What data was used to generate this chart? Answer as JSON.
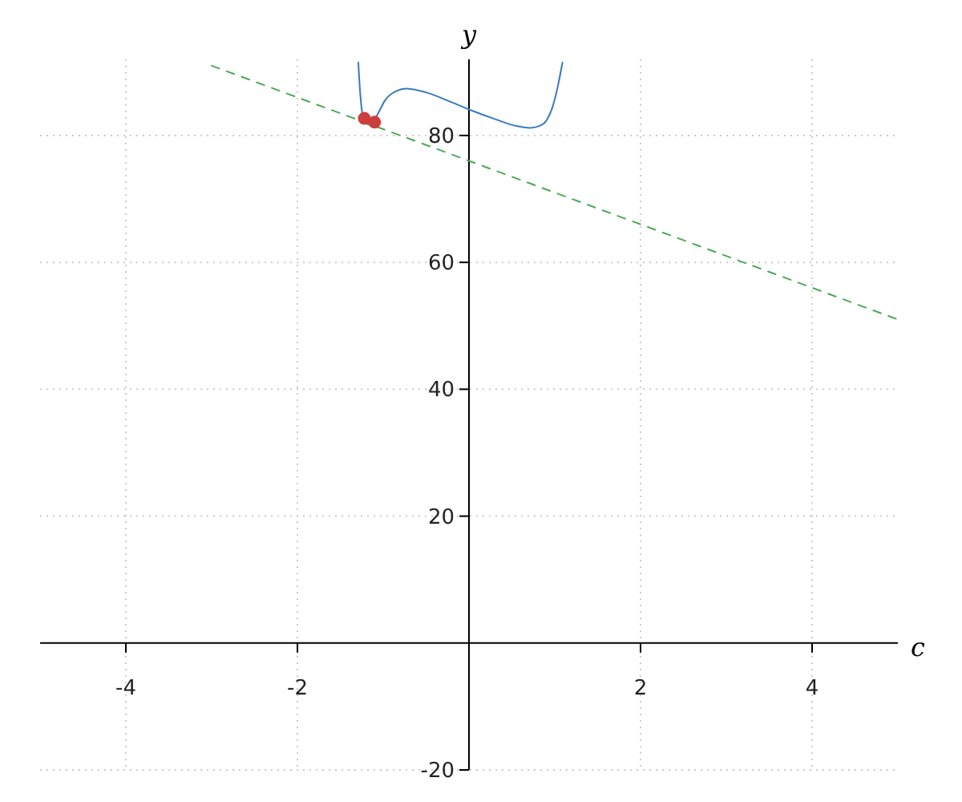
{
  "chart_data": {
    "type": "line",
    "xlabel": "c",
    "ylabel": "y",
    "xlim": [
      -5,
      5
    ],
    "ylim": [
      -20,
      92
    ],
    "xticks": [
      -4,
      -2,
      2,
      4
    ],
    "yticks": [
      -20,
      20,
      40,
      60,
      80
    ],
    "grid": true,
    "series": [
      {
        "color": "#3a78c3",
        "x": [
          -1.29,
          -1.28,
          -1.24,
          -1.2,
          -1.16,
          -1.1,
          -1.04,
          -0.98,
          -0.85,
          -0.73,
          -0.5,
          -0.25,
          0,
          0.3,
          0.55,
          0.71,
          0.82,
          0.9,
          0.97,
          1.03,
          1.09
        ],
        "values": [
          91.5,
          89.1,
          83.2,
          81.9,
          81.7,
          82.5,
          84,
          85.5,
          87,
          87.4,
          86.8,
          85.5,
          84.1,
          82.6,
          81.5,
          81.2,
          81.5,
          82.3,
          84.3,
          87.4,
          91.5
        ]
      },
      {
        "line_style": "dashed",
        "color": "#4aaa55",
        "x": [
          -3,
          5
        ],
        "values": [
          91,
          51
        ]
      },
      {
        "type": "scatter",
        "marker": "circle",
        "color": "#cc3e3e",
        "x": [
          -1.22,
          -1.1
        ],
        "values": [
          82.7,
          82.1
        ]
      }
    ]
  }
}
